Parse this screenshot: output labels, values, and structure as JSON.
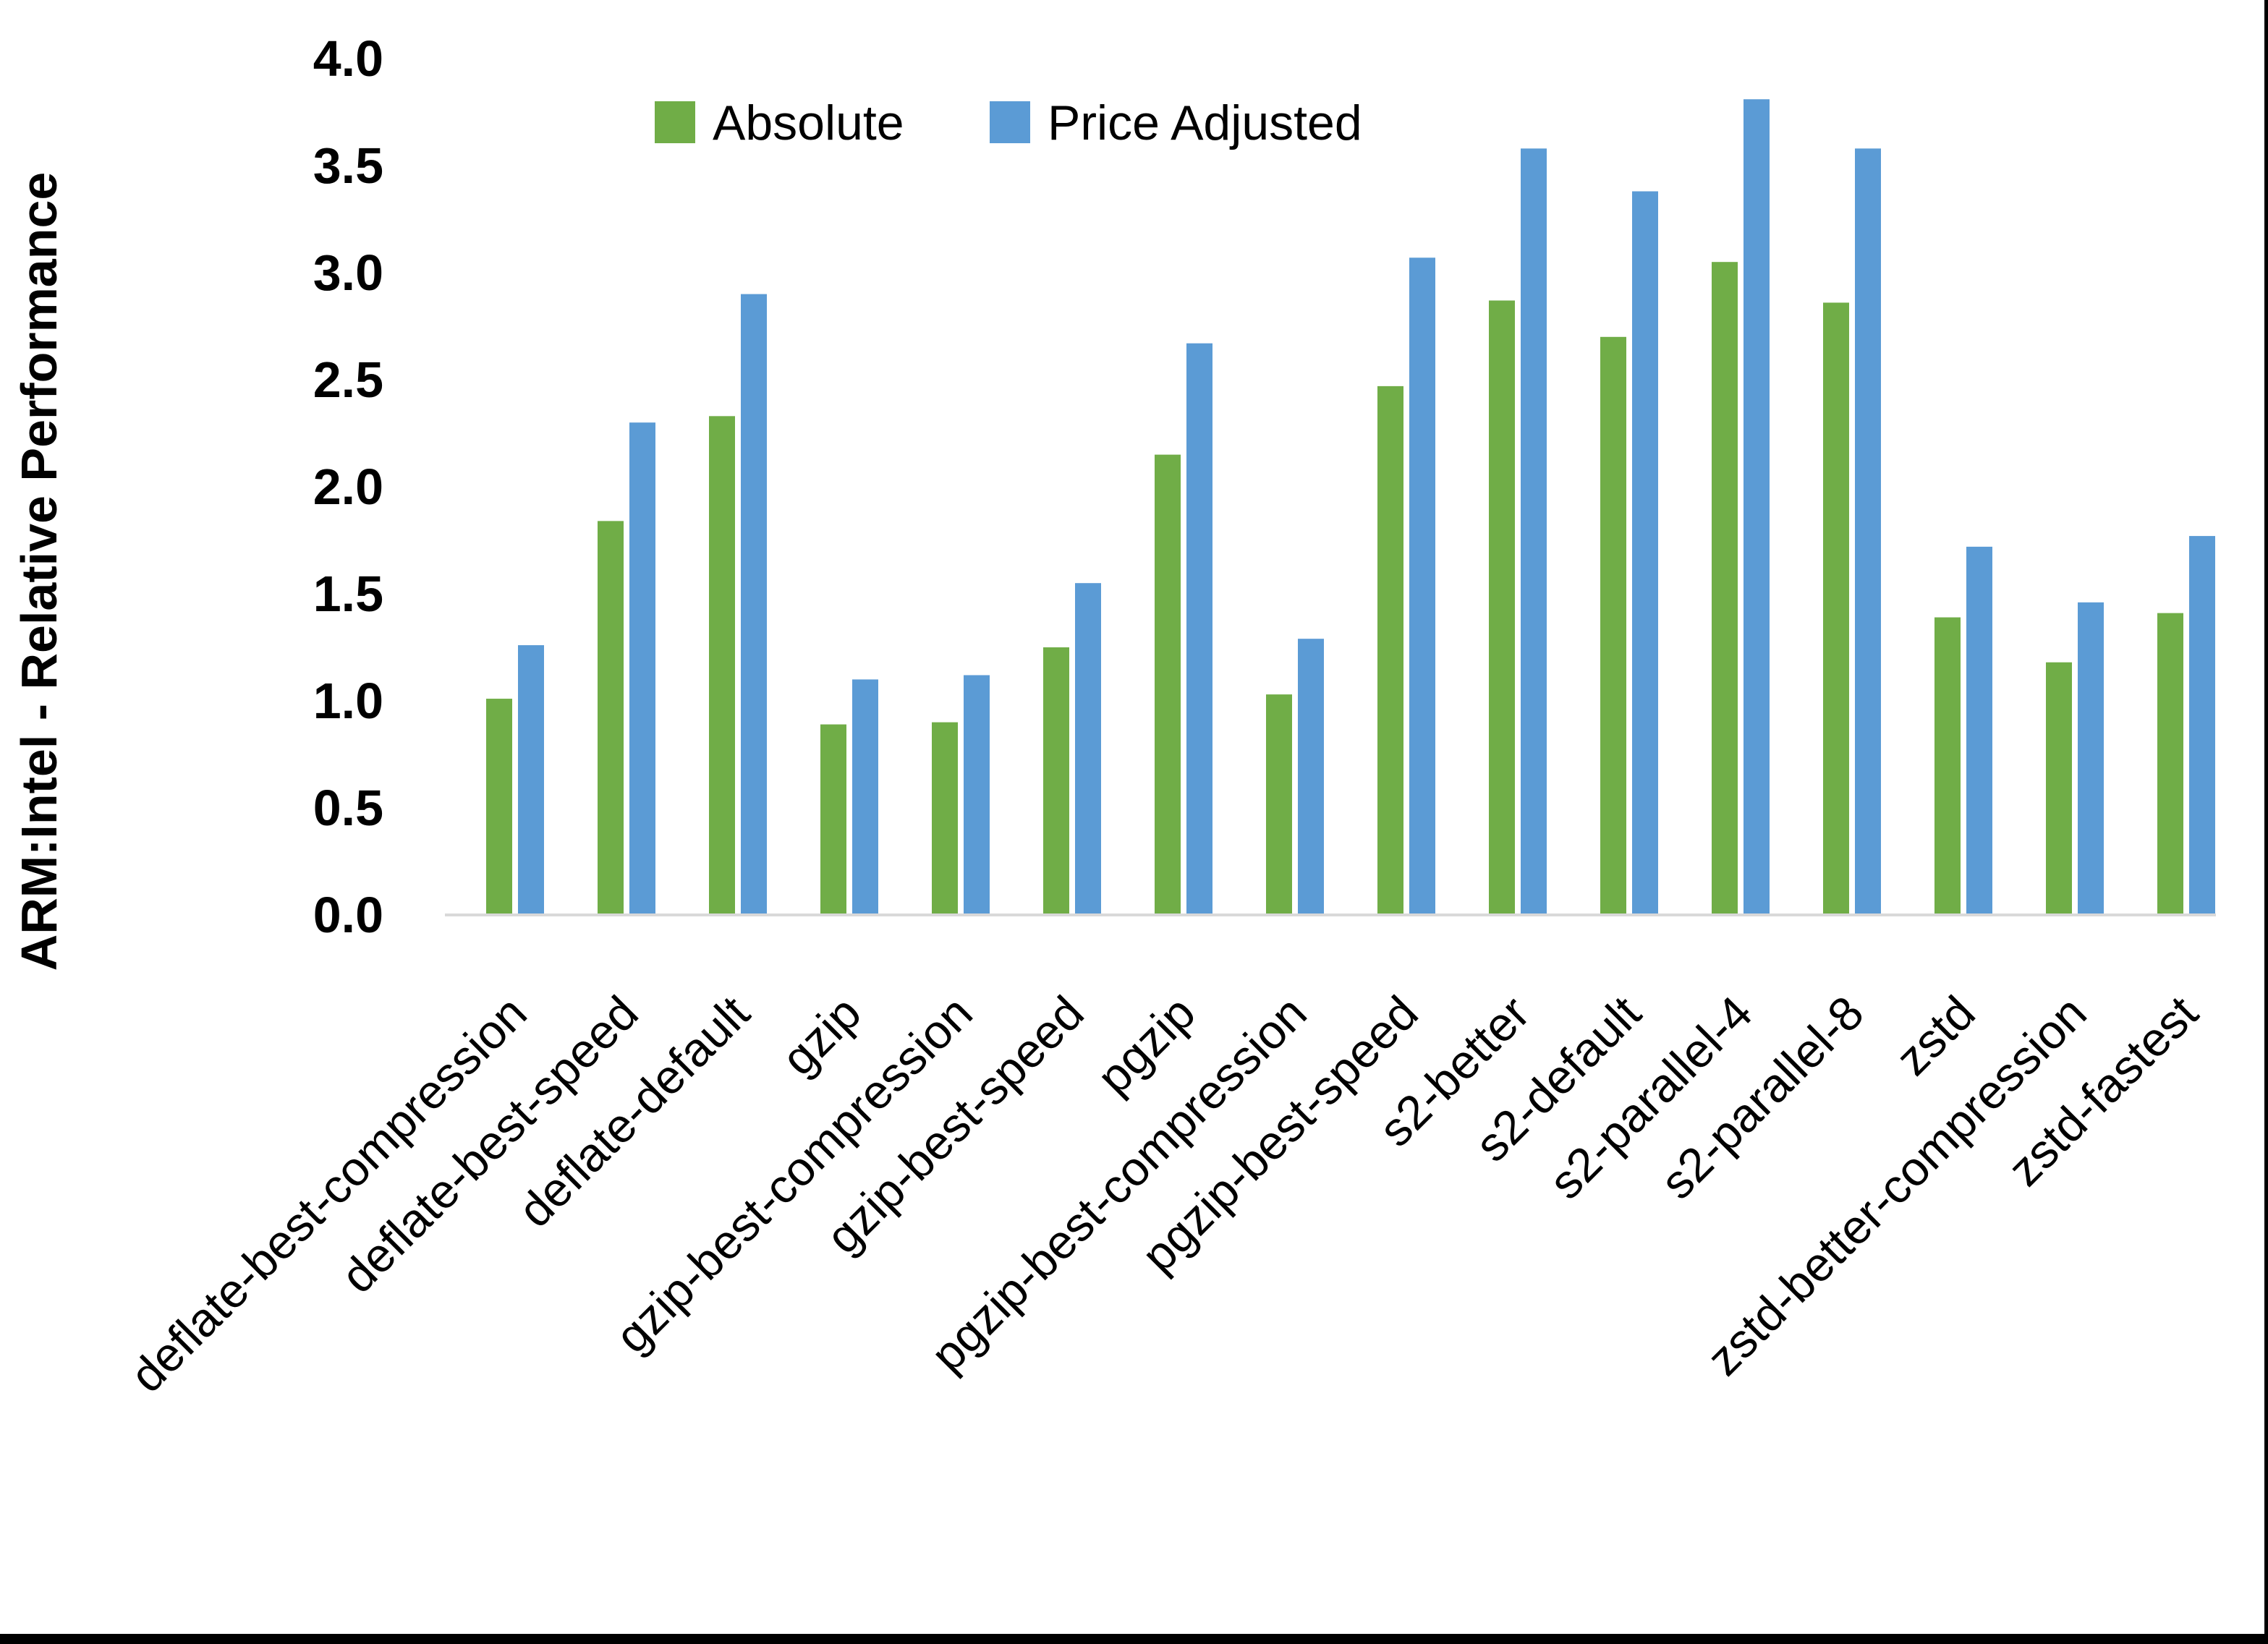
{
  "chart_data": {
    "type": "bar",
    "title": "",
    "ylabel": "ARM:Intel - Relative Performance",
    "xlabel": "",
    "ylim": [
      0.0,
      4.0
    ],
    "ytick_labels": [
      "0.0",
      "0.5",
      "1.0",
      "1.5",
      "2.0",
      "2.5",
      "3.0",
      "3.5",
      "4.0"
    ],
    "grid": "off",
    "legend_position": "top-center",
    "axis_line_color": "#D9D9D9",
    "background_color": "#FFFFFF",
    "frame_border_color": "#000000",
    "categories": [
      "deflate-best-compression",
      "deflate-best-speed",
      "deflate-default",
      "gzip",
      "gzip-best-compression",
      "gzip-best-speed",
      "pgzip",
      "pgzip-best-compression",
      "pgzip-best-speed",
      "s2-better",
      "s2-default",
      "s2-parallel-4",
      "s2-parallel-8",
      "zstd",
      "zstd-better-compression",
      "zstd-fastest"
    ],
    "series": [
      {
        "name": "Absolute",
        "color": "#70AD47",
        "values": [
          1.01,
          1.84,
          2.33,
          0.89,
          0.9,
          1.25,
          2.15,
          1.03,
          2.47,
          2.87,
          2.7,
          3.05,
          2.86,
          1.39,
          1.18,
          1.41
        ]
      },
      {
        "name": "Price Adjusted",
        "color": "#5B9BD5",
        "values": [
          1.26,
          2.3,
          2.9,
          1.1,
          1.12,
          1.55,
          2.67,
          1.29,
          3.07,
          3.58,
          3.38,
          3.81,
          3.58,
          1.72,
          1.46,
          1.77
        ]
      }
    ]
  }
}
